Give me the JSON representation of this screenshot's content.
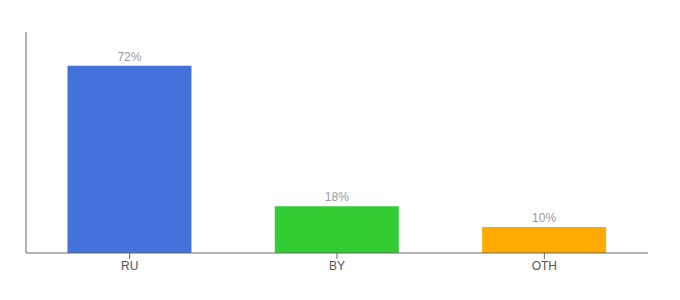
{
  "chart_data": {
    "type": "bar",
    "categories": [
      "RU",
      "BY",
      "OTH"
    ],
    "values": [
      72,
      18,
      10
    ],
    "colors": [
      "#4472db",
      "#33cc33",
      "#ffaa00"
    ],
    "value_labels": [
      "72%",
      "18%",
      "10%"
    ],
    "data_labels": true,
    "ylim": [
      0,
      85
    ],
    "tick_labels": "x"
  }
}
